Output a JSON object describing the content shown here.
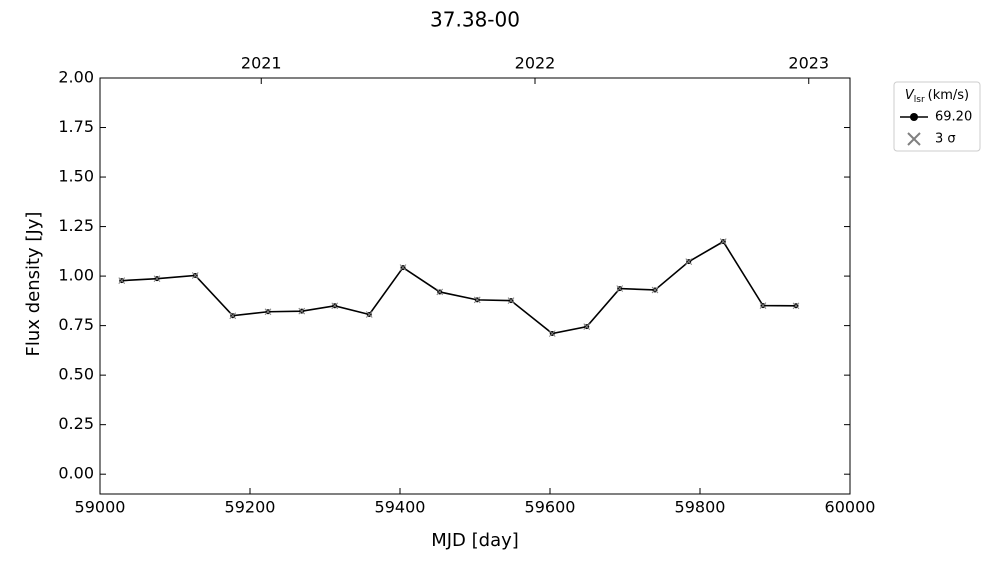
{
  "chart_data": {
    "type": "line",
    "title": "37.38-00",
    "x_label": "MJD [day]",
    "y_label": "Flux density [Jy]",
    "x": [
      59029,
      59076,
      59127,
      59177,
      59224,
      59269,
      59313,
      59359,
      59404,
      59453,
      59503,
      59548,
      59603,
      59649,
      59693,
      59740,
      59785,
      59831,
      59884,
      59928
    ],
    "series": [
      {
        "name": "69.20",
        "color": "#000000",
        "values": [
          0.977,
          0.987,
          1.003,
          0.8,
          0.82,
          0.823,
          0.85,
          0.806,
          1.043,
          0.92,
          0.88,
          0.876,
          0.71,
          0.745,
          0.937,
          0.93,
          1.073,
          1.174,
          0.851,
          0.85
        ]
      }
    ],
    "sigma_label": "3 σ",
    "sigma_color": "#808080",
    "legend_title": {
      "symbol": "V",
      "subscript": "lsr",
      "unit": "(km/s)"
    },
    "xlim": [
      59000,
      60000
    ],
    "xticks": [
      59000,
      59200,
      59400,
      59600,
      59800,
      60000
    ],
    "ylim": [
      -0.1,
      2.0
    ],
    "yticks": [
      {
        "value": 0,
        "label": "0.00"
      },
      {
        "value": 0.25,
        "label": "0.25"
      },
      {
        "value": 0.5,
        "label": "0.50"
      },
      {
        "value": 0.75,
        "label": "0.75"
      },
      {
        "value": 1.0,
        "label": "1.00"
      },
      {
        "value": 1.25,
        "label": "1.25"
      },
      {
        "value": 1.5,
        "label": "1.50"
      },
      {
        "value": 1.75,
        "label": "1.75"
      },
      {
        "value": 2.0,
        "label": "2.00"
      }
    ],
    "x2ticks": [
      {
        "value": 59215,
        "label": "2021"
      },
      {
        "value": 59580,
        "label": "2022"
      },
      {
        "value": 59945,
        "label": "2023"
      }
    ],
    "legend": "outside upper right",
    "grid": false
  }
}
